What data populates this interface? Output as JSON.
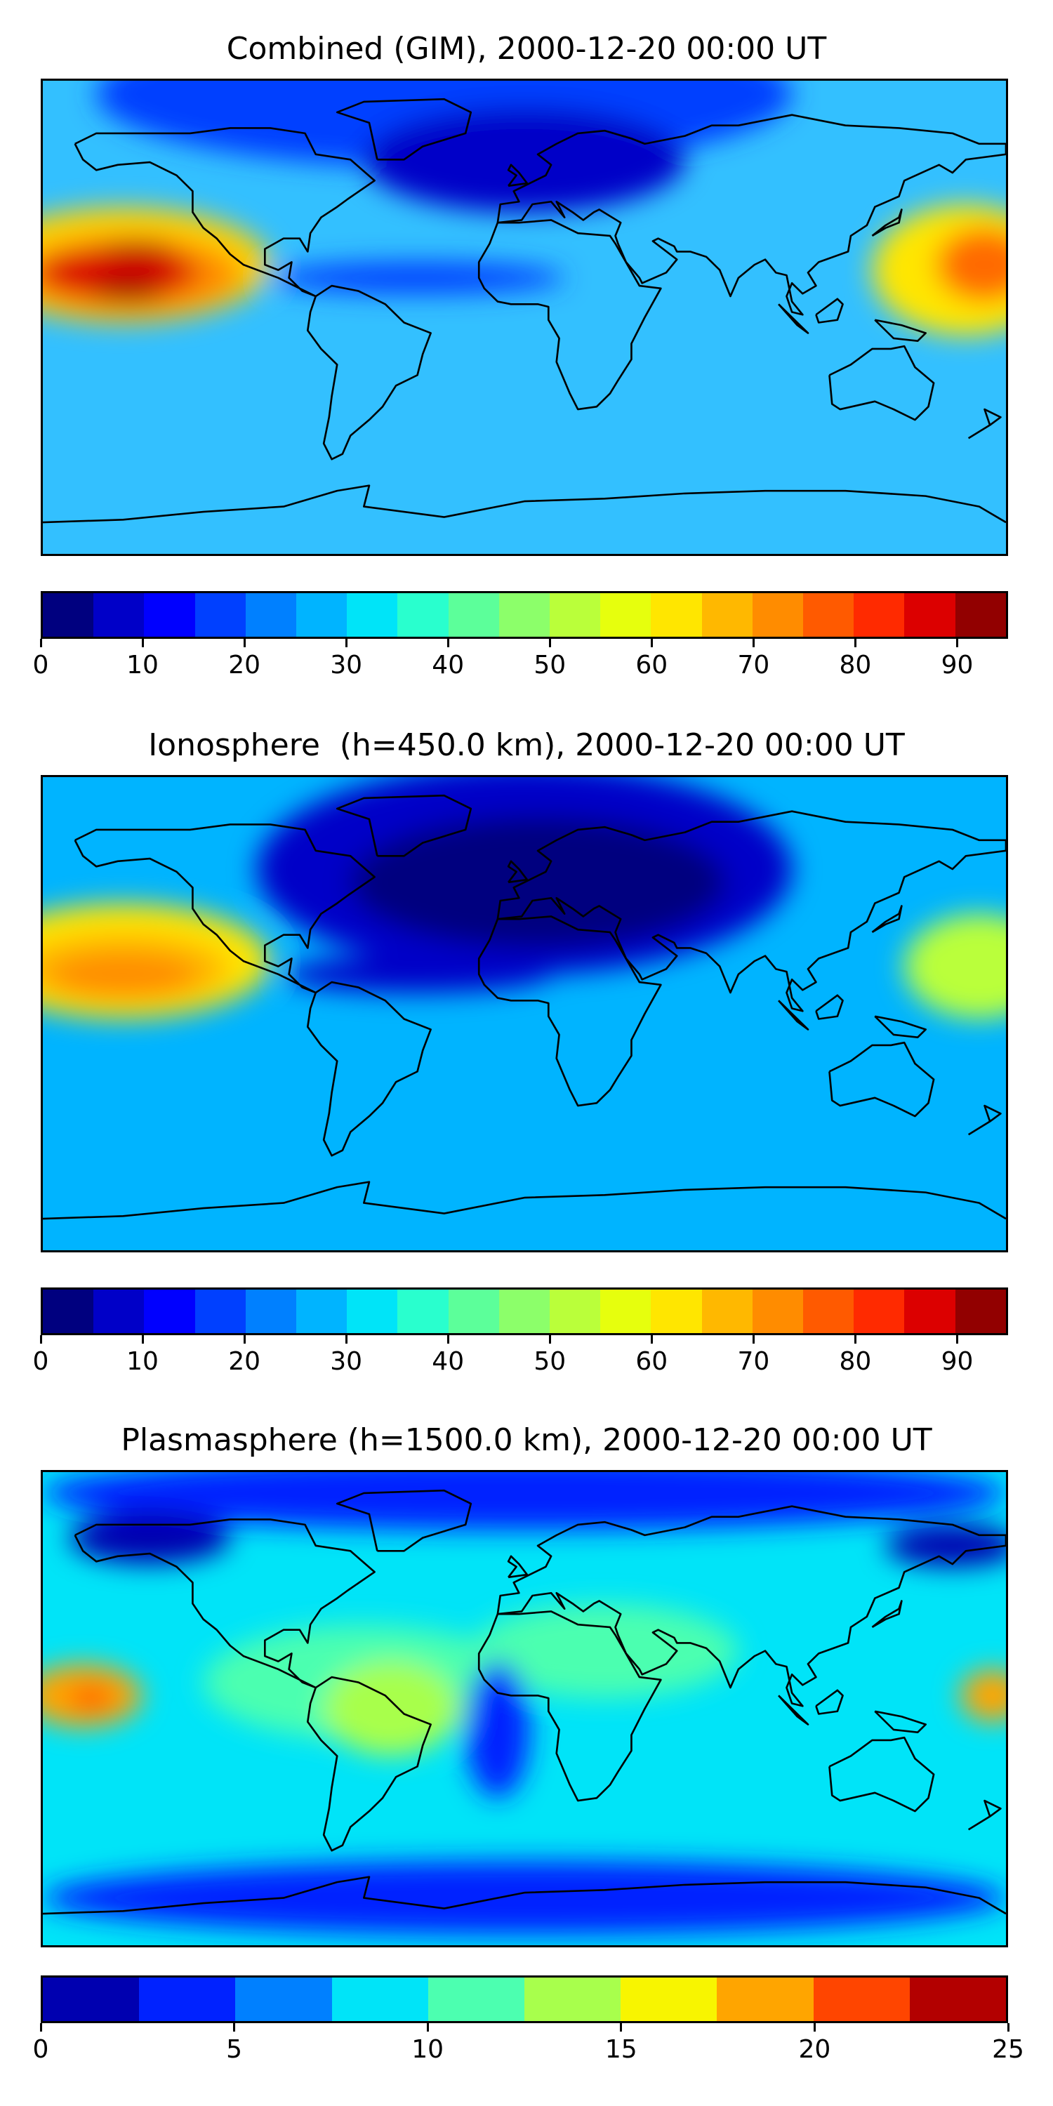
{
  "panels": [
    {
      "title": "Combined (GIM), 2000-12-20 00:00 UT",
      "colorbar": {
        "min": 0,
        "max": 95,
        "tick_labels": [
          "0",
          "10",
          "20",
          "30",
          "40",
          "50",
          "60",
          "70",
          "80",
          "90"
        ],
        "tick_values": [
          0,
          10,
          20,
          30,
          40,
          50,
          60,
          70,
          80,
          90
        ],
        "colors": [
          "#00007f",
          "#0000c8",
          "#0000ff",
          "#0040ff",
          "#0080ff",
          "#00b4ff",
          "#00e4f8",
          "#29ffce",
          "#5cff9a",
          "#8cff6a",
          "#baff3a",
          "#e6ff0d",
          "#ffe600",
          "#ffb800",
          "#ff8c00",
          "#ff5a00",
          "#ff2a00",
          "#dc0000",
          "#920000"
        ]
      },
      "base_color": "#33c0ff",
      "blobs": [
        {
          "lon": -150,
          "lat": 20,
          "rx": 55,
          "ry": 22,
          "color": "#ffd200"
        },
        {
          "lon": -148,
          "lat": 16,
          "rx": 42,
          "ry": 15,
          "color": "#ff8c00"
        },
        {
          "lon": -152,
          "lat": 17,
          "rx": 30,
          "ry": 10,
          "color": "#dc0000"
        },
        {
          "lon": -148,
          "lat": 10,
          "rx": 14,
          "ry": 4,
          "color": "#920000"
        },
        {
          "lon": -145,
          "lat": 25,
          "rx": 14,
          "ry": 4,
          "color": "#b80000"
        },
        {
          "lon": 165,
          "lat": 18,
          "rx": 35,
          "ry": 25,
          "color": "#ffe600"
        },
        {
          "lon": 172,
          "lat": 20,
          "rx": 18,
          "ry": 14,
          "color": "#ff6a00"
        },
        {
          "lon": -30,
          "lat": 85,
          "rx": 130,
          "ry": 28,
          "color": "#0040ff"
        },
        {
          "lon": 0,
          "lat": 60,
          "rx": 60,
          "ry": 20,
          "color": "#0000c8"
        },
        {
          "lon": -40,
          "lat": 15,
          "rx": 55,
          "ry": 6,
          "color": "#0040ff"
        }
      ]
    },
    {
      "title": "Ionosphere  (h=450.0 km), 2000-12-20 00:00 UT",
      "colorbar": {
        "min": 0,
        "max": 95,
        "tick_labels": [
          "0",
          "10",
          "20",
          "30",
          "40",
          "50",
          "60",
          "70",
          "80",
          "90"
        ],
        "tick_values": [
          0,
          10,
          20,
          30,
          40,
          50,
          60,
          70,
          80,
          90
        ],
        "colors": [
          "#00007f",
          "#0000c8",
          "#0000ff",
          "#0040ff",
          "#0080ff",
          "#00b4ff",
          "#00e4f8",
          "#29ffce",
          "#5cff9a",
          "#8cff6a",
          "#baff3a",
          "#e6ff0d",
          "#ffe600",
          "#ffb800",
          "#ff8c00",
          "#ff5a00",
          "#ff2a00",
          "#dc0000",
          "#920000"
        ]
      },
      "base_color": "#00b4ff",
      "blobs": [
        {
          "lon": -150,
          "lat": 20,
          "rx": 55,
          "ry": 22,
          "color": "#ffe600"
        },
        {
          "lon": -150,
          "lat": 17,
          "rx": 40,
          "ry": 14,
          "color": "#ffb800"
        },
        {
          "lon": -150,
          "lat": 15,
          "rx": 28,
          "ry": 8,
          "color": "#ff8c00"
        },
        {
          "lon": 170,
          "lat": 18,
          "rx": 28,
          "ry": 20,
          "color": "#baff3a"
        },
        {
          "lon": 0,
          "lat": 55,
          "rx": 100,
          "ry": 40,
          "color": "#0000c8"
        },
        {
          "lon": 5,
          "lat": 50,
          "rx": 70,
          "ry": 25,
          "color": "#00007f"
        },
        {
          "lon": -40,
          "lat": 15,
          "rx": 50,
          "ry": 7,
          "color": "#0000c8"
        }
      ]
    },
    {
      "title": "Plasmasphere (h=1500.0 km), 2000-12-20 00:00 UT",
      "colorbar": {
        "min": 0,
        "max": 25,
        "tick_labels": [
          "0",
          "5",
          "10",
          "15",
          "20",
          "25"
        ],
        "tick_values": [
          0,
          5,
          10,
          15,
          20,
          25
        ],
        "colors": [
          "#0000b0",
          "#0022ff",
          "#0080ff",
          "#00e4f8",
          "#4cffb0",
          "#a8ff4c",
          "#f8f500",
          "#ffa500",
          "#ff4500",
          "#b30000"
        ]
      },
      "base_color": "#00e4f8",
      "blobs": [
        {
          "lon": 0,
          "lat": 82,
          "rx": 180,
          "ry": 14,
          "color": "#0022ff"
        },
        {
          "lon": 0,
          "lat": -72,
          "rx": 180,
          "ry": 14,
          "color": "#0022ff"
        },
        {
          "lon": -60,
          "lat": 10,
          "rx": 60,
          "ry": 22,
          "color": "#4cffb0"
        },
        {
          "lon": 30,
          "lat": 22,
          "rx": 50,
          "ry": 18,
          "color": "#4cffb0"
        },
        {
          "lon": -50,
          "lat": 0,
          "rx": 25,
          "ry": 18,
          "color": "#a8ff4c"
        },
        {
          "lon": -10,
          "lat": -8,
          "rx": 12,
          "ry": 26,
          "color": "#0022ff"
        },
        {
          "lon": -165,
          "lat": 5,
          "rx": 22,
          "ry": 12,
          "color": "#ffa500"
        },
        {
          "lon": -162,
          "lat": 4,
          "rx": 8,
          "ry": 4,
          "color": "#ff4500"
        },
        {
          "lon": 175,
          "lat": 5,
          "rx": 12,
          "ry": 10,
          "color": "#ffa500"
        },
        {
          "lon": -140,
          "lat": 65,
          "rx": 30,
          "ry": 10,
          "color": "#0000b0"
        },
        {
          "lon": 160,
          "lat": 62,
          "rx": 25,
          "ry": 8,
          "color": "#0000b0"
        }
      ]
    }
  ]
}
